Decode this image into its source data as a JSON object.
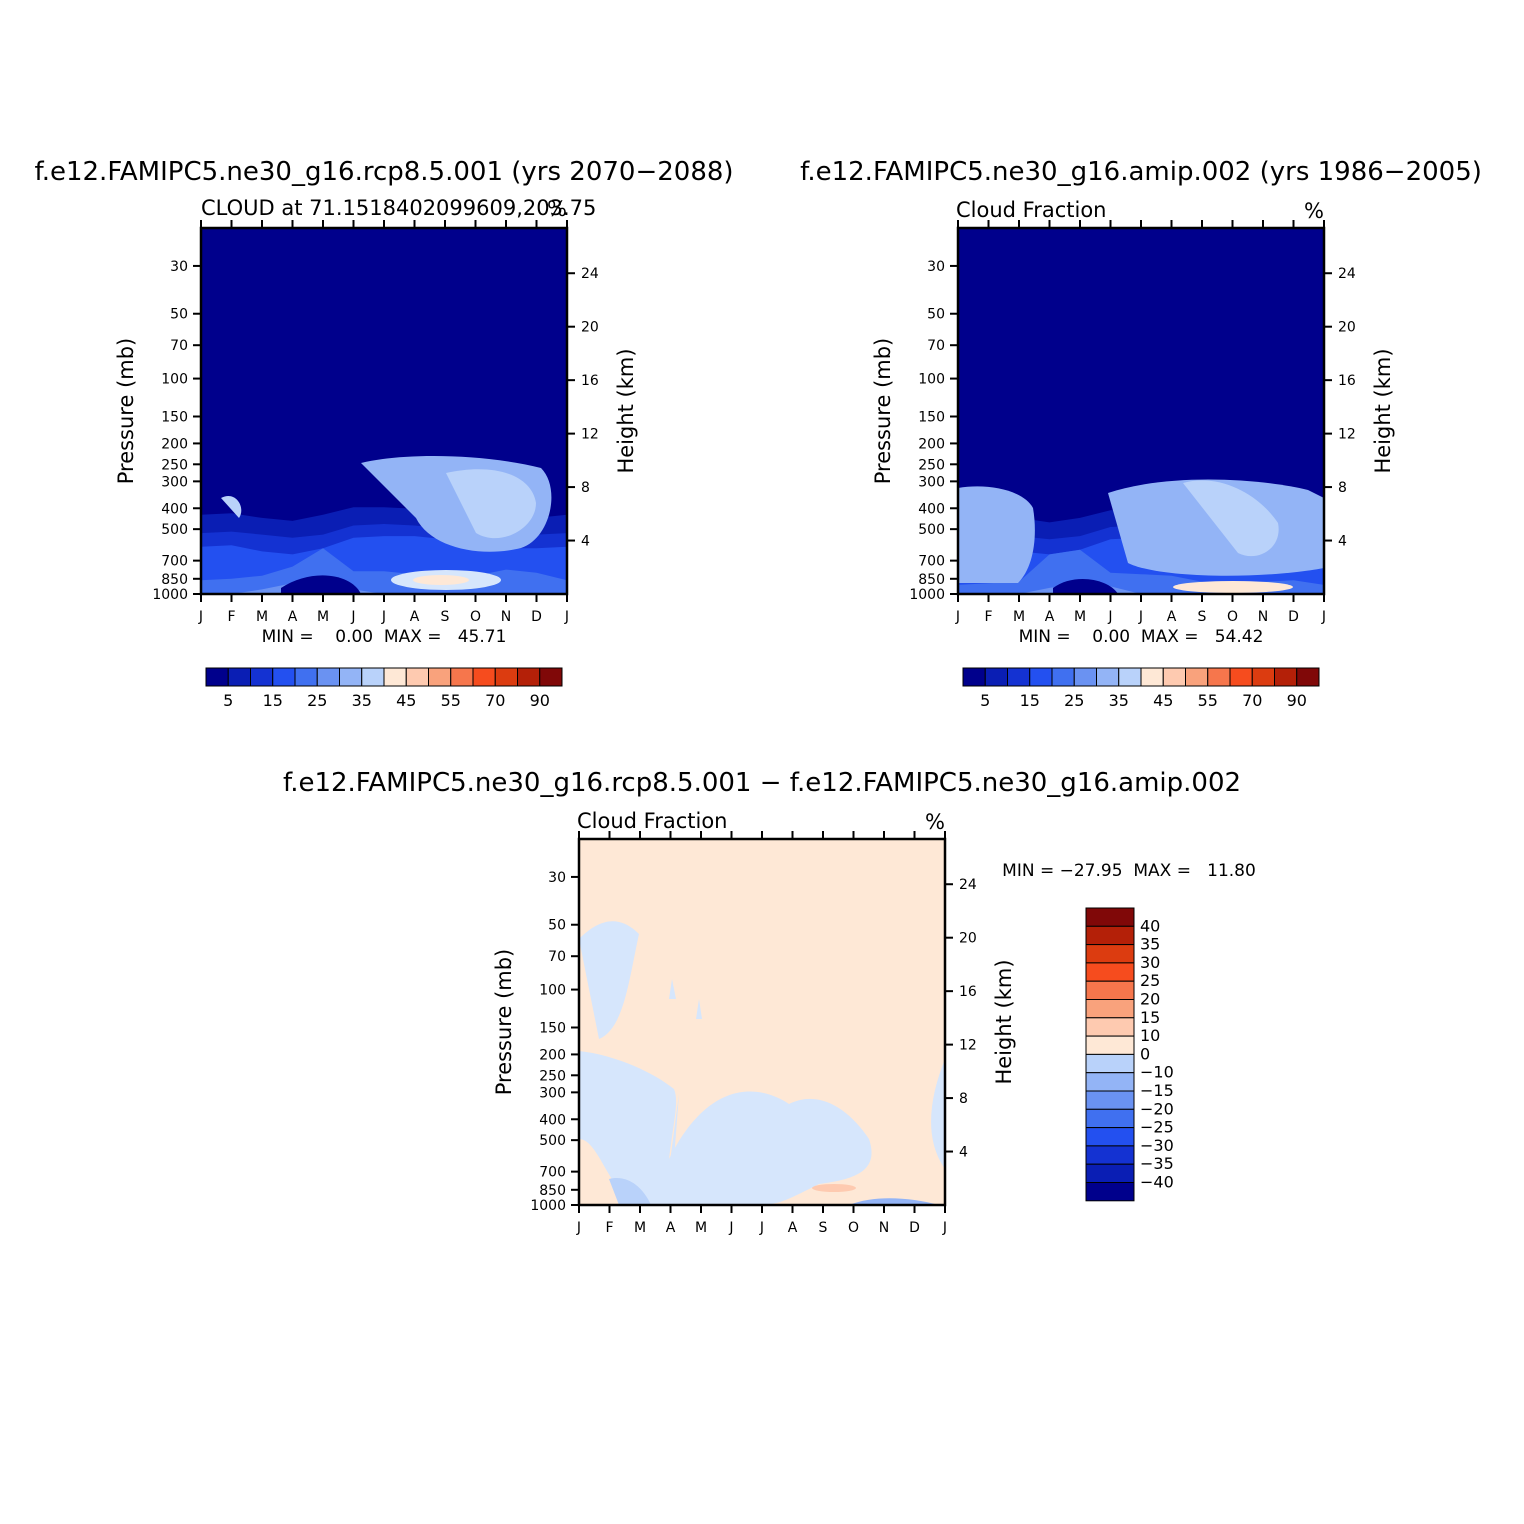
{
  "page": {
    "background": "#ffffff"
  },
  "colors": {
    "full": [
      "#00008c",
      "#0a1eb4",
      "#1432d2",
      "#2350f0",
      "#4070f0",
      "#6a92f2",
      "#93b4f6",
      "#b9d2fa",
      "#d6e6fc",
      "#fee8d6",
      "#fecab0",
      "#f9a27c",
      "#f6764c",
      "#f64c1e",
      "#dc3c10",
      "#b42008",
      "#800808"
    ],
    "diff": [
      "#00008c",
      "#0a1eb4",
      "#1432d2",
      "#2350f0",
      "#4070f0",
      "#6a92f2",
      "#93b4f6",
      "#b9d2fa",
      "#d6e6fc",
      "#fee8d6",
      "#fecab0",
      "#f9a27c",
      "#f6764c",
      "#f64c1e",
      "#dc3c10",
      "#b42008",
      "#800808"
    ]
  },
  "chart_data": [
    {
      "type": "heatmap",
      "title": "f.e12.FAMIPC5.ne30_g16.rcp8.5.001 (yrs 2070−2088)",
      "subtitle_left": "CLOUD at 71.1518402099609,203.75",
      "subtitle_right": "%",
      "ylabel": "Pressure (mb)",
      "y2label": "Height (km)",
      "xticks": [
        "J",
        "F",
        "M",
        "A",
        "M",
        "J",
        "J",
        "A",
        "S",
        "O",
        "N",
        "D",
        "J"
      ],
      "yticks": [
        30,
        50,
        70,
        100,
        150,
        200,
        250,
        300,
        400,
        500,
        700,
        850,
        1000
      ],
      "y2ticks": [
        24,
        20,
        16,
        12,
        8,
        4
      ],
      "ylim": [
        1000,
        20
      ],
      "log_scale_y": true,
      "stats": {
        "min": "0.00",
        "max": "45.71",
        "text": "MIN =    0.00  MAX =   45.71"
      },
      "colorbar": {
        "orientation": "horizontal",
        "labels": [
          "5",
          "15",
          "25",
          "35",
          "45",
          "55",
          "70",
          "90"
        ]
      },
      "contour_levels": [
        {
          "level": 5,
          "tops": [
            5.2,
            5.3,
            5.0,
            4.8,
            5.2,
            5.7,
            5.7,
            5.6,
            5.6,
            5.3,
            4.8,
            5.0,
            5.2
          ]
        },
        {
          "level": 10,
          "tops": [
            4.0,
            4.1,
            3.9,
            3.7,
            3.9,
            4.5,
            4.6,
            4.5,
            4.3,
            4.1,
            3.8,
            3.9,
            4.0
          ]
        },
        {
          "level": 15,
          "tops": [
            3.1,
            3.2,
            2.8,
            2.6,
            3.0,
            3.7,
            3.8,
            3.8,
            3.6,
            3.3,
            3.0,
            3.0,
            3.1
          ]
        },
        {
          "level": 20,
          "tops": [
            0.9,
            1.0,
            1.2,
            1.8,
            3.0,
            1.5,
            1.5,
            1.3,
            1.0,
            1.2,
            1.6,
            1.4,
            0.9
          ]
        },
        {
          "level": 25,
          "tops": [
            0,
            0,
            0.3,
            0.7,
            0.9,
            0.3,
            0,
            0,
            0,
            0,
            0,
            0,
            0
          ]
        },
        {
          "level": 30,
          "tops": [
            0,
            0,
            0,
            0,
            0.4,
            0,
            0,
            0,
            0,
            0,
            0,
            0,
            0
          ]
        }
      ],
      "light_patches": [
        {
          "level": 25,
          "center": [
            "A",
            450
          ],
          "note": "lighter region 300-600 mb Jul-Nov"
        },
        {
          "level": 45,
          "center": [
            "S",
            880
          ],
          "note": "near-surface maximum"
        }
      ]
    },
    {
      "type": "heatmap",
      "title": "f.e12.FAMIPC5.ne30_g16.amip.002 (yrs 1986−2005)",
      "subtitle_left": "Cloud Fraction",
      "subtitle_right": "%",
      "ylabel": "Pressure (mb)",
      "y2label": "Height (km)",
      "xticks": [
        "J",
        "F",
        "M",
        "A",
        "M",
        "J",
        "J",
        "A",
        "S",
        "O",
        "N",
        "D",
        "J"
      ],
      "yticks": [
        30,
        50,
        70,
        100,
        150,
        200,
        250,
        300,
        400,
        500,
        700,
        850,
        1000
      ],
      "y2ticks": [
        24,
        20,
        16,
        12,
        8,
        4
      ],
      "ylim": [
        1000,
        20
      ],
      "log_scale_y": true,
      "stats": {
        "min": "0.00",
        "max": "54.42",
        "text": "MIN =    0.00  MAX =   54.42"
      },
      "colorbar": {
        "orientation": "horizontal",
        "labels": [
          "5",
          "15",
          "25",
          "35",
          "45",
          "55",
          "70",
          "90"
        ]
      },
      "contour_levels": [
        {
          "level": 5,
          "tops": [
            5.2,
            5.3,
            5.0,
            4.7,
            5.0,
            5.5,
            5.6,
            5.6,
            5.5,
            5.3,
            4.9,
            5.0,
            5.2
          ]
        },
        {
          "level": 10,
          "tops": [
            4.0,
            4.0,
            3.8,
            3.6,
            3.8,
            4.4,
            4.5,
            4.4,
            4.3,
            4.1,
            3.9,
            3.9,
            4.0
          ]
        },
        {
          "level": 15,
          "tops": [
            3.1,
            3.1,
            2.8,
            2.6,
            2.9,
            3.6,
            3.7,
            3.7,
            3.5,
            3.3,
            3.0,
            3.0,
            3.1
          ]
        },
        {
          "level": 20,
          "tops": [
            0.6,
            0.7,
            0.8,
            2.6,
            2.9,
            1.4,
            1.3,
            1.2,
            0.8,
            0.7,
            0.8,
            0.9,
            0.6
          ]
        },
        {
          "level": 25,
          "tops": [
            0,
            0,
            0,
            0.4,
            0.7,
            0.5,
            0,
            0,
            0,
            0,
            0,
            0,
            0
          ]
        }
      ],
      "light_patches": [
        {
          "level": 25,
          "center": [
            "O",
            500
          ],
          "note": "lighter region 350-700 mb Aug-Nov"
        },
        {
          "level": 45,
          "center": [
            "O",
            950
          ],
          "note": "near-surface maximum"
        }
      ]
    },
    {
      "type": "heatmap",
      "title": "f.e12.FAMIPC5.ne30_g16.rcp8.5.001 − f.e12.FAMIPC5.ne30_g16.amip.002",
      "subtitle_left": "Cloud Fraction",
      "subtitle_right": "%",
      "ylabel": "Pressure (mb)",
      "y2label": "Height (km)",
      "xticks": [
        "J",
        "F",
        "M",
        "A",
        "M",
        "J",
        "J",
        "A",
        "S",
        "O",
        "N",
        "D",
        "J"
      ],
      "yticks": [
        30,
        50,
        70,
        100,
        150,
        200,
        250,
        300,
        400,
        500,
        700,
        850,
        1000
      ],
      "y2ticks": [
        24,
        20,
        16,
        12,
        8,
        4
      ],
      "ylim": [
        1000,
        20
      ],
      "log_scale_y": true,
      "stats": {
        "min": "−27.95",
        "max": "11.80",
        "text": "MIN = −27.95  MAX =   11.80"
      },
      "colorbar": {
        "orientation": "vertical",
        "labels": [
          "40",
          "35",
          "30",
          "25",
          "20",
          "15",
          "10",
          "0",
          "−10",
          "−15",
          "−20",
          "−25",
          "−30",
          "−35",
          "−40"
        ]
      },
      "regions": [
        {
          "range": "0 to −10",
          "note": "negative 70-150 mb Jan-Mar and 250-1000 mb Jan-Oct"
        },
        {
          "range": "0 to 10",
          "note": "positive elsewhere"
        },
        {
          "range": "10 to 15",
          "note": "small positive near 850 mb Sep"
        },
        {
          "range": "−15 to −25",
          "note": "small negative near 1000 mb Nov"
        }
      ]
    }
  ]
}
